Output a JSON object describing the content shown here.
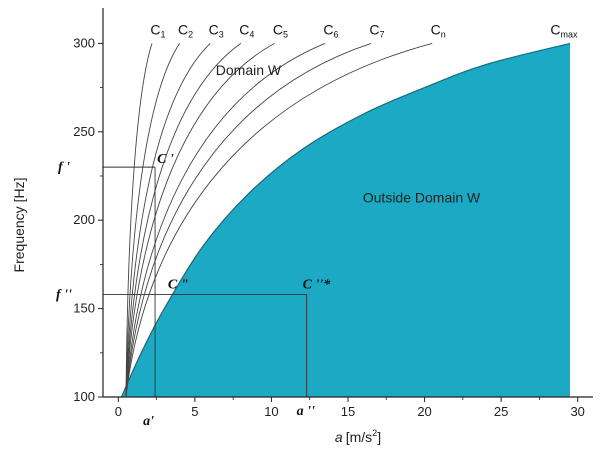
{
  "chart_data": {
    "type": "area",
    "xlabel_prefix": "a",
    "xlabel_unit": "[m/s",
    "xlabel_sup": "2",
    "xlabel_close": "]",
    "ylabel": "Frequency [Hz]",
    "xlim": [
      -1,
      31
    ],
    "ylim": [
      100,
      320
    ],
    "xticks": [
      0,
      5,
      10,
      15,
      20,
      25,
      30
    ],
    "yticks": [
      100,
      150,
      200,
      250,
      300
    ],
    "fill_color": "#1ba9c4",
    "boundary": {
      "name": "Cmax",
      "x": [
        0.2,
        1.5,
        3.0,
        5.5,
        8.5,
        12.0,
        16.0,
        20.0,
        24.0,
        29.5
      ],
      "y": [
        100,
        125,
        150,
        185,
        215,
        240,
        260,
        275,
        288,
        300
      ]
    },
    "curves": [
      {
        "name": "C1",
        "x_at_300": 2.2
      },
      {
        "name": "C2",
        "x_at_300": 4.0
      },
      {
        "name": "C3",
        "x_at_300": 6.0
      },
      {
        "name": "C4",
        "x_at_300": 8.0
      },
      {
        "name": "C5",
        "x_at_300": 10.2
      },
      {
        "name": "C6",
        "x_at_300": 13.5
      },
      {
        "name": "C7",
        "x_at_300": 16.5
      },
      {
        "name": "Cn",
        "x_at_300": 20.5
      }
    ],
    "curve_labels": [
      {
        "main": "C",
        "sub": "1"
      },
      {
        "main": "C",
        "sub": "2"
      },
      {
        "main": "C",
        "sub": "3"
      },
      {
        "main": "C",
        "sub": "4"
      },
      {
        "main": "C",
        "sub": "5"
      },
      {
        "main": "C",
        "sub": "6"
      },
      {
        "main": "C",
        "sub": "7"
      },
      {
        "main": "C",
        "sub": "n"
      }
    ],
    "cmax_label": {
      "main": "C",
      "sub": "max"
    },
    "curve_start_x": 0.5,
    "region_labels": {
      "inside": "Domain W",
      "outside": "Outside Domain W"
    },
    "annotations": {
      "c_prime": {
        "label": "C '",
        "x": 2.4,
        "y": 230
      },
      "f_prime": {
        "label": "f '",
        "y": 230
      },
      "c_dprime": {
        "label": "C \"",
        "x": 3.5,
        "y": 158
      },
      "c_dprime_star": {
        "label": "C ''*",
        "x": 12.3,
        "y": 158
      },
      "f_dprime": {
        "label": "f ''",
        "y": 158
      },
      "a_prime": {
        "label": "a'",
        "x": 2.4
      },
      "a_dprime": {
        "label": "a ''",
        "x": 12.3
      }
    }
  }
}
